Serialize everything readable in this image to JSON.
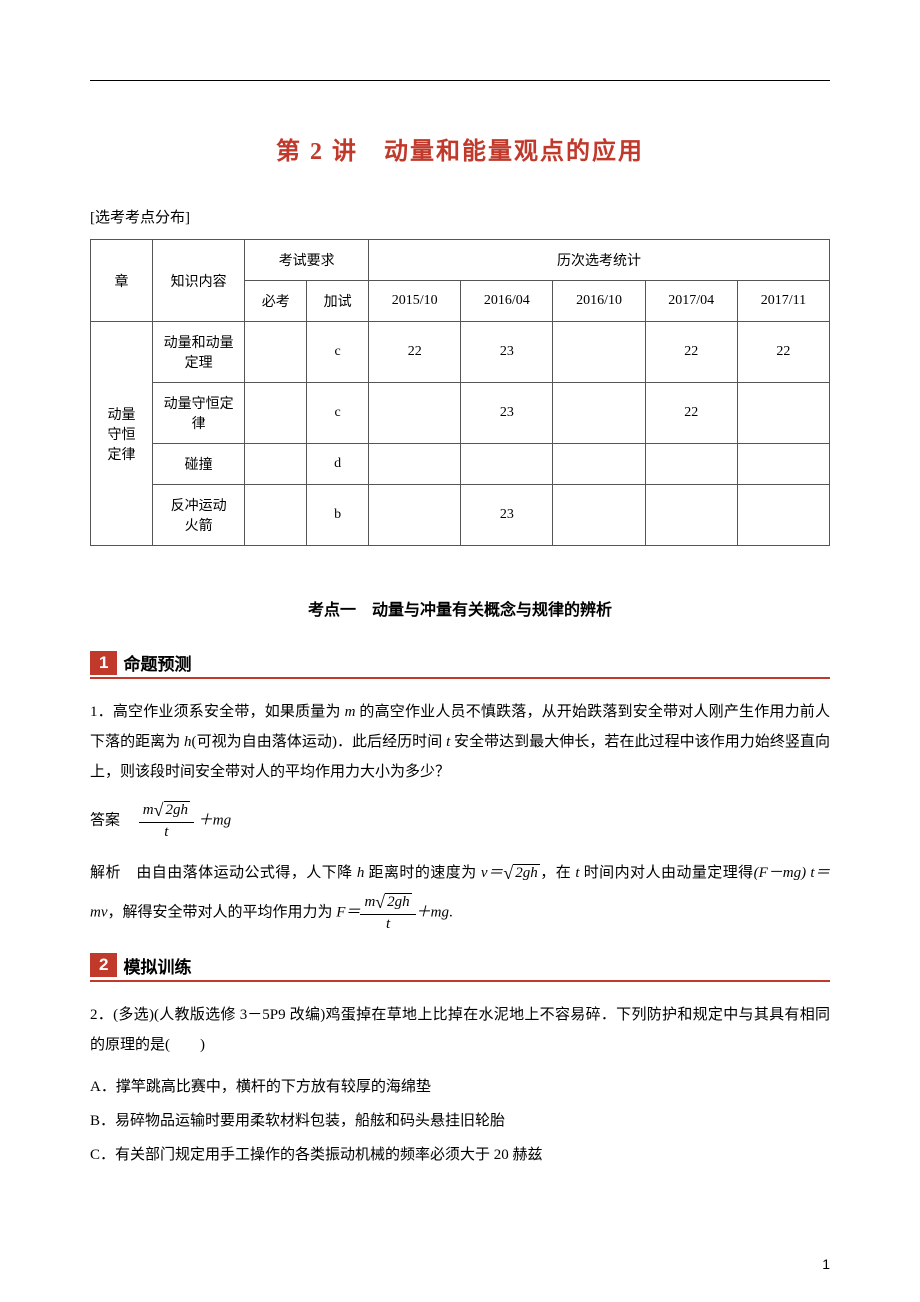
{
  "title": "第 2 讲　动量和能量观点的应用",
  "distribution_label": "[选考考点分布]",
  "table": {
    "headers": {
      "chapter": "章",
      "content": "知识内容",
      "exam_req": "考试要求",
      "req_must": "必考",
      "req_extra": "加试",
      "history": "历次选考统计",
      "y2015_10": "2015/10",
      "y2016_04": "2016/04",
      "y2016_10": "2016/10",
      "y2017_04": "2017/04",
      "y2017_11": "2017/11"
    },
    "chapter_label": "动量守恒定律",
    "rows": [
      {
        "content": "动量和动量定理",
        "must": "",
        "extra": "c",
        "y2015_10": "22",
        "y2016_04": "23",
        "y2016_10": "",
        "y2017_04": "22",
        "y2017_11": "22"
      },
      {
        "content": "动量守恒定律",
        "must": "",
        "extra": "c",
        "y2015_10": "",
        "y2016_04": "23",
        "y2016_10": "",
        "y2017_04": "22",
        "y2017_11": ""
      },
      {
        "content": "碰撞",
        "must": "",
        "extra": "d",
        "y2015_10": "",
        "y2016_04": "",
        "y2016_10": "",
        "y2017_04": "",
        "y2017_11": ""
      },
      {
        "content": "反冲运动 火箭",
        "must": "",
        "extra": "b",
        "y2015_10": "",
        "y2016_04": "23",
        "y2016_10": "",
        "y2017_04": "",
        "y2017_11": ""
      }
    ]
  },
  "kaodian_title": "考点一　动量与冲量有关概念与规律的辨析",
  "section1": {
    "num": "1",
    "label": "命题预测"
  },
  "q1": {
    "text_prefix": "1．高空作业须系安全带，如果质量为 ",
    "m": "m",
    "text_mid1": " 的高空作业人员不慎跌落，从开始跌落到安全带对人刚产生作用力前人下落的距离为 ",
    "h": "h",
    "text_mid2": "(可视为自由落体运动)．此后经历时间 ",
    "t": "t",
    "text_mid3": " 安全带达到最大伸长，若在此过程中该作用力始终竖直向上，则该段时间安全带对人的平均作用力大小为多少？",
    "answer_label": "答案　",
    "explain_label": "解析　",
    "explain_1": "由自由落体运动公式得，人下降 ",
    "explain_2": " 距离时的速度为 ",
    "explain_3": "，在 ",
    "explain_4": " 时间内对人由动量定理得",
    "explain_eq_lhs": "(F－mg)",
    "explain_eq_mid": " t＝mv",
    "explain_5": "，解得安全带对人的平均作用力为 ",
    "explain_F": "F＝",
    "plus_mg": "＋mg",
    "two_gh": "2gh",
    "v_eq": "v＝"
  },
  "section2": {
    "num": "2",
    "label": "模拟训练"
  },
  "q2": {
    "text": "2．(多选)(人教版选修 3－5P9 改编)鸡蛋掉在草地上比掉在水泥地上不容易碎．下列防护和规定中与其具有相同的原理的是(　　)",
    "options": {
      "A": "A．撑竿跳高比赛中，横杆的下方放有较厚的海绵垫",
      "B": "B．易碎物品运输时要用柔软材料包装，船舷和码头悬挂旧轮胎",
      "C": "C．有关部门规定用手工操作的各类振动机械的频率必须大于 20 赫兹"
    }
  },
  "page_number": "1"
}
